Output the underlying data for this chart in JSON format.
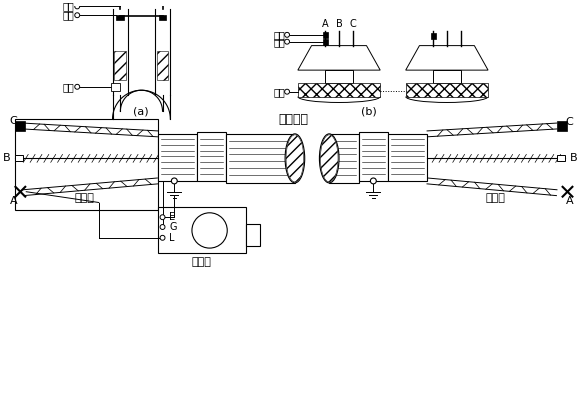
{
  "bg_color": "#ffffff",
  "section_a_label": "(a)",
  "section_b_label": "(b)",
  "text_dianli": "电力电缆",
  "text_baohu_left": "保护环",
  "text_baohu_right": "保护环",
  "text_zhaou": "兆欧表",
  "text_xianxin": "线芯",
  "text_pingbi": "屏蔽",
  "text_jiedi": "接地",
  "text_A": "A",
  "text_B": "B",
  "text_C": "C",
  "text_E": "E",
  "text_G": "G",
  "text_L": "L"
}
